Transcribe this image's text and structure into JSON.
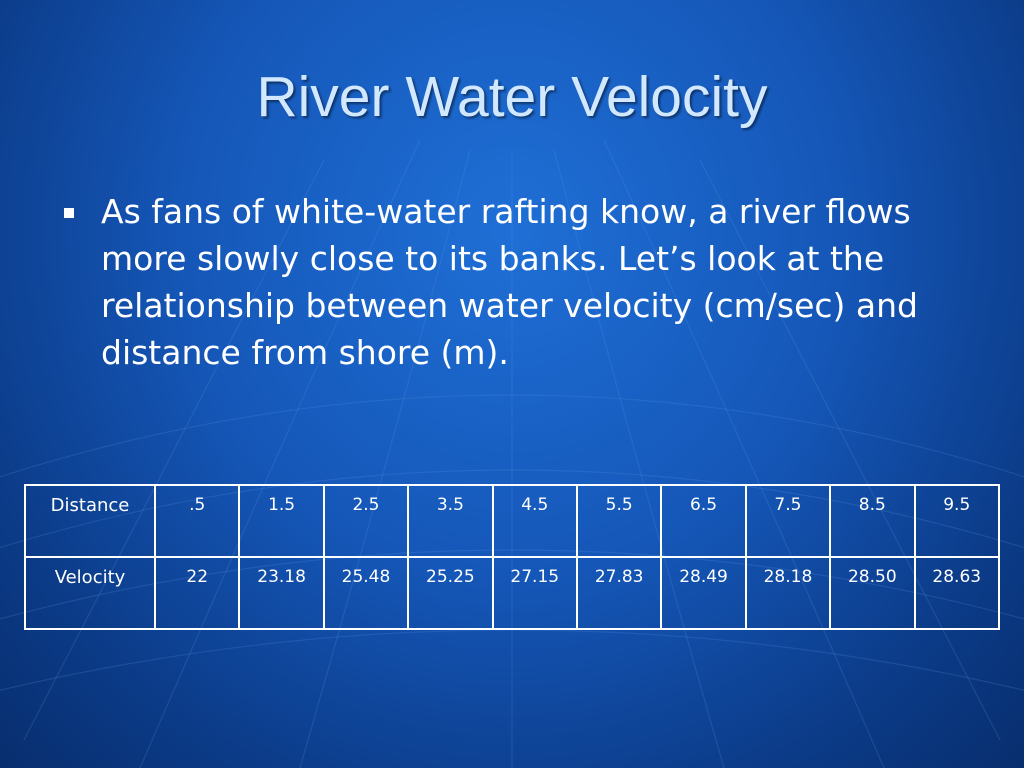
{
  "slide": {
    "title": "River Water Velocity",
    "bullet": "As fans of white-water rafting know, a river flows more slowly close to its banks. Let’s look at the relationship between water velocity (cm/sec) and distance from shore (m)."
  },
  "table": {
    "rows": [
      {
        "label": "Distance",
        "cells": [
          ".5",
          "1.5",
          "2.5",
          "3.5",
          "4.5",
          "5.5",
          "6.5",
          "7.5",
          "8.5",
          "9.5"
        ]
      },
      {
        "label": "Velocity",
        "cells": [
          "22",
          "23.18",
          "25.48",
          "25.25",
          "27.15",
          "27.83",
          "28.49",
          "28.18",
          "28.50",
          "28.63"
        ]
      }
    ]
  },
  "colors": {
    "background": "#1557b8",
    "title": "#d2e8ff",
    "text": "#ffffff"
  }
}
